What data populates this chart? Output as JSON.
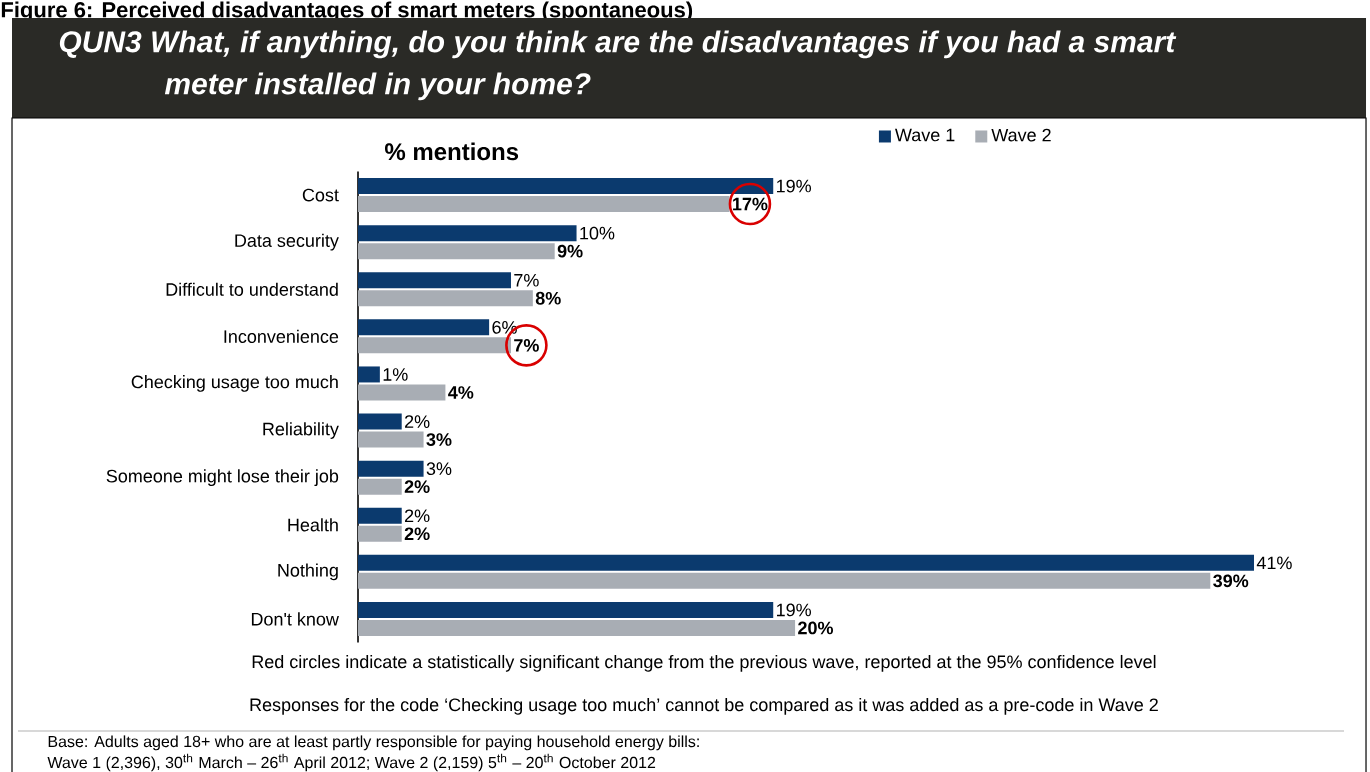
{
  "chart_data": {
    "type": "bar",
    "orientation": "horizontal",
    "title": "Figure 6: Perceived disadvantages of smart meters (spontaneous)",
    "subtitle": "QUN3  What, if anything, do you think are the disadvantages if you had a smart meter installed in your home?",
    "xlabel": "% mentions",
    "categories": [
      "Cost",
      "Data security",
      "Difficult to understand",
      "Inconvenience",
      "Checking usage too much",
      "Reliability",
      "Someone might lose their job",
      "Health",
      "Nothing",
      "Don't know"
    ],
    "series": [
      {
        "name": "Wave 1",
        "color": "#0b3a6e",
        "values": [
          19,
          10,
          7,
          6,
          1,
          2,
          3,
          2,
          41,
          19
        ],
        "value_labels": [
          "19%",
          "10%",
          "7%",
          "6%",
          "1%",
          "2%",
          "3%",
          "2%",
          "41%",
          "19%"
        ]
      },
      {
        "name": "Wave 2",
        "color": "#a8adb4",
        "values": [
          17,
          9,
          8,
          7,
          4,
          3,
          2,
          2,
          39,
          20
        ],
        "value_labels": [
          "17%",
          "9%",
          "8%",
          "7%",
          "4%",
          "3%",
          "2%",
          "2%",
          "39%",
          "20%"
        ]
      }
    ],
    "legend": "top",
    "annotations": [
      "Red circles indicate a statistically significant change from the previous wave, reported at the 95% confidence level",
      "Responses for the code ‘Checking usage too much’ cannot be compared as it was added as a pre-code in Wave 2",
      "Base:  Adults aged 18+ who are at least partly responsible for paying household energy bills:",
      "Wave 1 (2,396), 30$^{th}$ March – 26$^{th}$ April 2012; Wave 2 (2,159) 5$^{th}$ – 20$^{th}$ October 2012"
    ]
  }
}
